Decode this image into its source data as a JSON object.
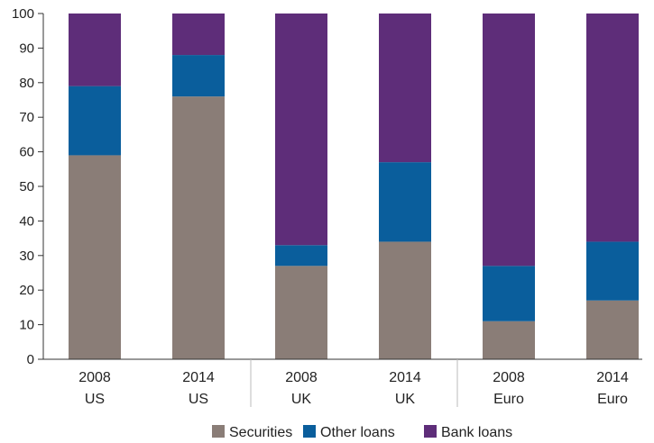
{
  "chart_data": {
    "type": "bar",
    "stacked": true,
    "categories": [
      {
        "year": "2008",
        "region": "US"
      },
      {
        "year": "2014",
        "region": "US"
      },
      {
        "year": "2008",
        "region": "UK"
      },
      {
        "year": "2014",
        "region": "UK"
      },
      {
        "year": "2008",
        "region": "Euro"
      },
      {
        "year": "2014",
        "region": "Euro"
      }
    ],
    "series": [
      {
        "name": "Securities",
        "color": "#8a7d77",
        "values": [
          59,
          76,
          27,
          34,
          11,
          17
        ]
      },
      {
        "name": "Other loans",
        "color": "#0a5e9c",
        "values": [
          20,
          12,
          6,
          23,
          16,
          17
        ]
      },
      {
        "name": "Bank loans",
        "color": "#5e2d79",
        "values": [
          21,
          12,
          67,
          43,
          73,
          66
        ]
      }
    ],
    "ylim": [
      0,
      100
    ],
    "yticks": [
      "0",
      "10",
      "20",
      "30",
      "40",
      "50",
      "60",
      "70",
      "80",
      "90",
      "100"
    ],
    "legend_position": "bottom",
    "grid": false
  }
}
